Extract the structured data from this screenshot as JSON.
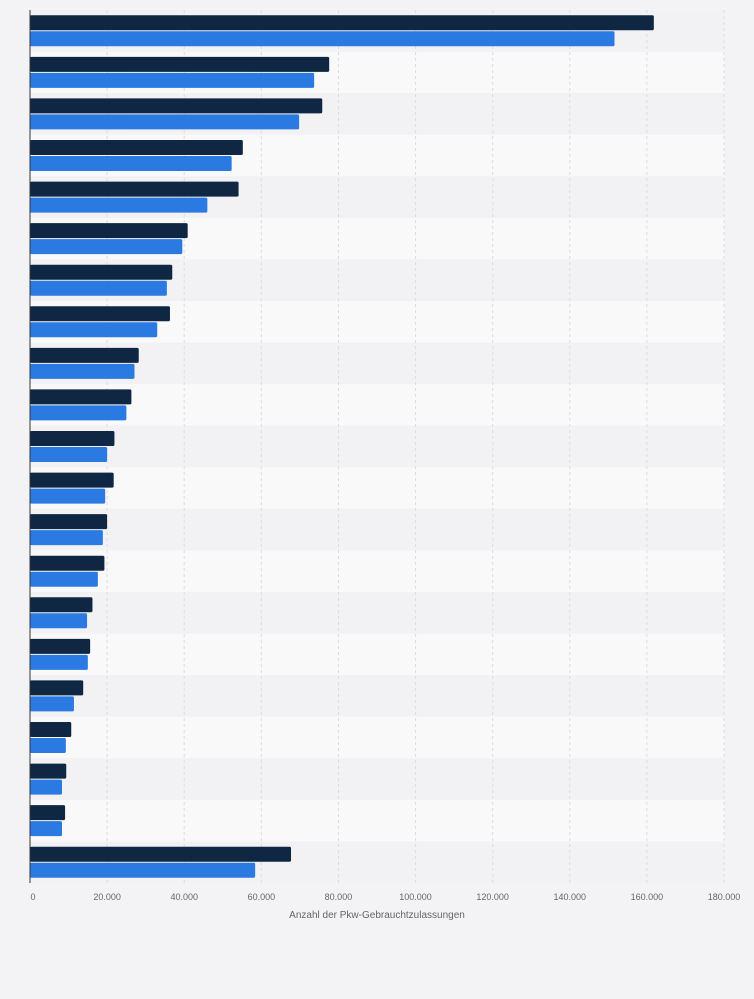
{
  "chart_data": {
    "type": "bar",
    "orientation": "horizontal",
    "categories": [
      "",
      "",
      "",
      "",
      "",
      "",
      "",
      "",
      "",
      "",
      "",
      "",
      "",
      "",
      "",
      "",
      "",
      "",
      "",
      "",
      ""
    ],
    "series": [
      {
        "color": "#0f2742",
        "values": [
          161800,
          77600,
          75800,
          55200,
          54100,
          40900,
          36900,
          36300,
          28200,
          26300,
          21900,
          21700,
          20000,
          19300,
          16200,
          15600,
          13800,
          10700,
          9400,
          9100,
          67700
        ]
      },
      {
        "color": "#2a7ae2",
        "values": [
          151600,
          73700,
          69800,
          52300,
          46000,
          39500,
          35500,
          33000,
          27100,
          25000,
          20000,
          19500,
          18900,
          17600,
          14800,
          15000,
          11400,
          9300,
          8300,
          8300,
          58400
        ]
      }
    ],
    "xlim": [
      0,
      180000
    ],
    "x_ticks": [
      0,
      20000,
      40000,
      60000,
      80000,
      100000,
      120000,
      140000,
      160000,
      180000
    ],
    "x_tick_labels": [
      "0",
      "20.000",
      "40.000",
      "60.000",
      "80.000",
      "100.000",
      "120.000",
      "140.000",
      "160.000",
      "180.000"
    ],
    "xlabel": "Anzahl der Pkw-Gebrauchtzulassungen",
    "ylabel": "",
    "title": "",
    "grid": true,
    "legend": "none"
  }
}
